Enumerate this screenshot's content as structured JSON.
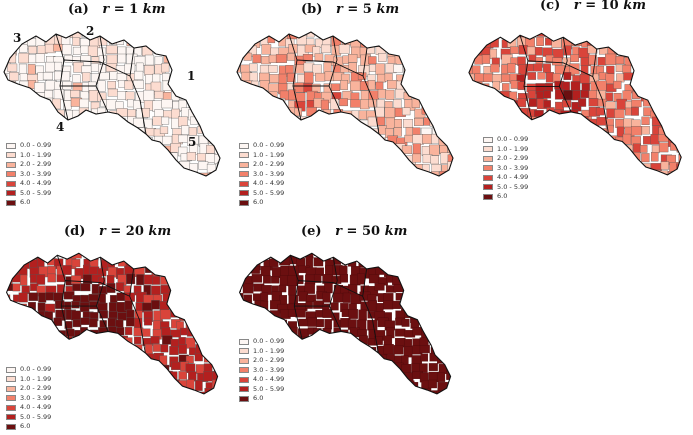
{
  "panels": [
    {
      "id": "a",
      "label": "(a)",
      "r_symbol": "r",
      "radius": "= 1",
      "unit": "km",
      "fill_level": 0.12
    },
    {
      "id": "b",
      "label": "(b)",
      "r_symbol": "r",
      "radius": "= 5",
      "unit": "km",
      "fill_level": 0.35
    },
    {
      "id": "c",
      "label": "(c)",
      "r_symbol": "r",
      "radius": "= 10",
      "unit": "km",
      "fill_level": 0.6
    },
    {
      "id": "d",
      "label": "(d)",
      "r_symbol": "r",
      "radius": "= 20",
      "unit": "km",
      "fill_level": 0.88
    },
    {
      "id": "e",
      "label": "(e)",
      "r_symbol": "r",
      "radius": "= 50",
      "unit": "km",
      "fill_level": 1.0
    }
  ],
  "legend": [
    {
      "label": "0.0 - 0.99",
      "color": "#fdf6f3"
    },
    {
      "label": "1.0 - 1.99",
      "color": "#fcdcd0"
    },
    {
      "label": "2.0 - 2.99",
      "color": "#f9b39c"
    },
    {
      "label": "3.0 - 3.99",
      "color": "#f2806a"
    },
    {
      "label": "4.0 - 4.99",
      "color": "#d9443a"
    },
    {
      "label": "5.0 - 5.99",
      "color": "#b3201f"
    },
    {
      "label": "6.0",
      "color": "#6b0f10"
    }
  ],
  "province_labels": [
    "1",
    "2",
    "3",
    "4",
    "5"
  ]
}
